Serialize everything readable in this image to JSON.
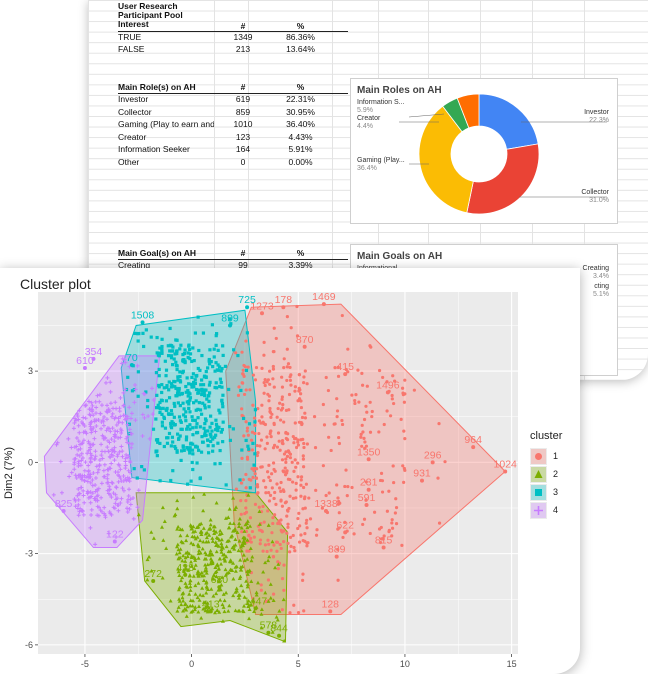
{
  "sheet": {
    "interest_table": {
      "header": [
        "User Research\nParticipant Pool\nInterest",
        "#",
        "%"
      ],
      "rows": [
        [
          "TRUE",
          "1349",
          "86.36%"
        ],
        [
          "FALSE",
          "213",
          "13.64%"
        ]
      ]
    },
    "roles_table": {
      "header": [
        "Main Role(s) on AH",
        "#",
        "%"
      ],
      "rows": [
        [
          "Investor",
          "619",
          "22.31%"
        ],
        [
          "Collector",
          "859",
          "30.95%"
        ],
        [
          "Gaming (Play to earn and",
          "1010",
          "36.40%"
        ],
        [
          "Creator",
          "123",
          "4.43%"
        ],
        [
          "Information Seeker",
          "164",
          "5.91%"
        ],
        [
          "Other",
          "0",
          "0.00%"
        ]
      ]
    },
    "goals_table": {
      "header": [
        "Main Goal(s) on AH",
        "#",
        "%"
      ],
      "rows": [
        [
          "Creating",
          "99",
          "3.39%"
        ]
      ]
    },
    "roles_chart": {
      "title": "Main Roles on AH",
      "labels": [
        {
          "name": "Information S...",
          "pct": "5.9%"
        },
        {
          "name": "Creator",
          "pct": "4.4%"
        },
        {
          "name": "Gaming (Play...",
          "pct": "36.4%"
        },
        {
          "name": "Investor",
          "pct": "22.3%"
        },
        {
          "name": "Collector",
          "pct": "31.0%"
        }
      ]
    },
    "goals_chart": {
      "title": "Main Goals on AH",
      "labels": [
        {
          "name": "Informational",
          "pct": ""
        },
        {
          "name": "Creating",
          "pct": "3.4%"
        },
        {
          "name": "cting",
          "pct": "5.1%"
        }
      ]
    }
  },
  "chart_data": [
    {
      "type": "pie",
      "title": "Main Roles on AH",
      "categories": [
        "Investor",
        "Collector",
        "Gaming (Play to earn and",
        "Creator",
        "Information Seeker",
        "Other"
      ],
      "values": [
        22.31,
        30.95,
        36.4,
        4.43,
        5.91,
        0.0
      ],
      "colors": [
        "#4285F4",
        "#EA4335",
        "#FBBC04",
        "#34A853",
        "#FF6D01",
        "#46BDC6"
      ],
      "donut": true
    },
    {
      "type": "scatter",
      "title": "Cluster plot",
      "xlabel": "",
      "ylabel": "Dim2 (7%)",
      "xlim": [
        -7.2,
        15.3
      ],
      "ylim": [
        -6.3,
        5.6
      ],
      "xticks": [
        -5,
        0,
        5,
        10,
        15
      ],
      "yticks": [
        -6,
        -3,
        0,
        3
      ],
      "legend_title": "cluster",
      "legend_position": "right",
      "grid": true,
      "clusters": [
        {
          "name": "1",
          "color": "#F8766D",
          "shape": "circle",
          "hull": [
            [
              2.8,
              5.1
            ],
            [
              7.0,
              5.2
            ],
            [
              14.7,
              -0.3
            ],
            [
              7.0,
              -5.0
            ],
            [
              3.0,
              -5.0
            ],
            [
              2.0,
              -2.0
            ],
            [
              1.6,
              3.0
            ]
          ],
          "labeled_points": [
            {
              "label": "1469",
              "x": 6.2,
              "y": 5.2
            },
            {
              "label": "178",
              "x": 4.3,
              "y": 5.1
            },
            {
              "label": "1273",
              "x": 3.3,
              "y": 4.9
            },
            {
              "label": "870",
              "x": 5.3,
              "y": 3.8
            },
            {
              "label": "415",
              "x": 7.2,
              "y": 2.9
            },
            {
              "label": "1496",
              "x": 9.2,
              "y": 2.3
            },
            {
              "label": "964",
              "x": 13.2,
              "y": 0.5
            },
            {
              "label": "1024",
              "x": 14.7,
              "y": -0.3
            },
            {
              "label": "1350",
              "x": 8.3,
              "y": 0.1
            },
            {
              "label": "296",
              "x": 11.3,
              "y": 0.0
            },
            {
              "label": "931",
              "x": 10.8,
              "y": -0.6
            },
            {
              "label": "231",
              "x": 8.3,
              "y": -0.9
            },
            {
              "label": "591",
              "x": 8.2,
              "y": -1.4
            },
            {
              "label": "1338",
              "x": 6.3,
              "y": -1.6
            },
            {
              "label": "622",
              "x": 7.2,
              "y": -2.3
            },
            {
              "label": "815",
              "x": 9.0,
              "y": -2.8
            },
            {
              "label": "889",
              "x": 6.8,
              "y": -3.1
            },
            {
              "label": "128",
              "x": 6.5,
              "y": -4.9
            }
          ]
        },
        {
          "name": "2",
          "color": "#7CAE00",
          "shape": "triangle",
          "hull": [
            [
              -2.6,
              -1.0
            ],
            [
              3.0,
              -1.0
            ],
            [
              4.5,
              -2.3
            ],
            [
              4.4,
              -5.9
            ],
            [
              1.8,
              -5.2
            ],
            [
              -0.5,
              -5.4
            ],
            [
              -2.2,
              -3.9
            ]
          ],
          "labeled_points": [
            {
              "label": "272",
              "x": -1.8,
              "y": -3.9
            },
            {
              "label": "438",
              "x": -0.3,
              "y": -3.7
            },
            {
              "label": "413",
              "x": 0.9,
              "y": -4.9
            },
            {
              "label": "680",
              "x": 1.3,
              "y": -4.1
            },
            {
              "label": "1447",
              "x": 3.0,
              "y": -4.8
            },
            {
              "label": "578",
              "x": 3.6,
              "y": -5.6
            },
            {
              "label": "844",
              "x": 4.1,
              "y": -5.7
            }
          ]
        },
        {
          "name": "3",
          "color": "#00BFC4",
          "shape": "square",
          "hull": [
            [
              -3.3,
              3.1
            ],
            [
              -2.6,
              4.5
            ],
            [
              2.5,
              5.0
            ],
            [
              3.0,
              2.0
            ],
            [
              3.0,
              -1.0
            ],
            [
              -2.8,
              -0.5
            ]
          ],
          "labeled_points": [
            {
              "label": "725",
              "x": 2.6,
              "y": 5.1
            },
            {
              "label": "1508",
              "x": -2.3,
              "y": 4.6
            },
            {
              "label": "899",
              "x": 1.8,
              "y": 4.5
            },
            {
              "label": "70",
              "x": -2.8,
              "y": 3.2
            }
          ]
        },
        {
          "name": "4",
          "color": "#C77CFF",
          "shape": "cross",
          "hull": [
            [
              -6.9,
              0.2
            ],
            [
              -3.4,
              3.5
            ],
            [
              -1.5,
              3.5
            ],
            [
              -2.3,
              -1.9
            ],
            [
              -3.5,
              -2.8
            ],
            [
              -4.6,
              -2.8
            ],
            [
              -6.8,
              -1.0
            ]
          ],
          "labeled_points": [
            {
              "label": "354",
              "x": -4.6,
              "y": 3.4
            },
            {
              "label": "610",
              "x": -5.0,
              "y": 3.1
            },
            {
              "label": "825",
              "x": -6.0,
              "y": -1.6
            },
            {
              "label": "122",
              "x": -3.6,
              "y": -2.6
            }
          ]
        }
      ]
    }
  ]
}
